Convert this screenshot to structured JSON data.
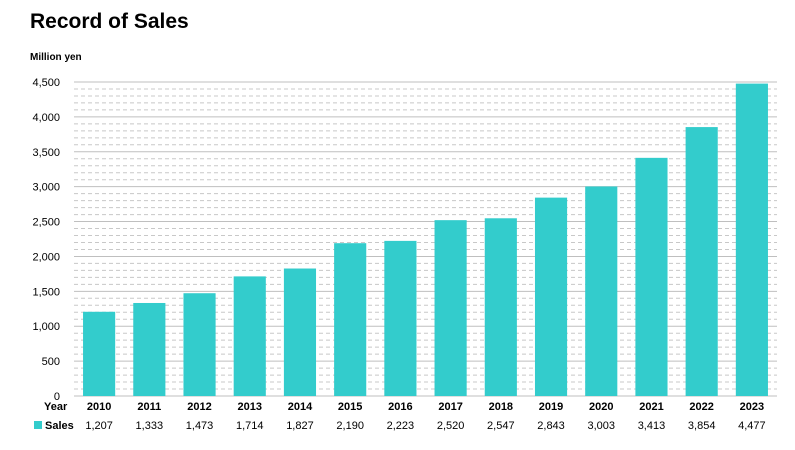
{
  "chart_data": {
    "type": "bar",
    "title": "Record of Sales",
    "ylabel": "Million yen",
    "xlabel": "Year",
    "categories": [
      "2010",
      "2011",
      "2012",
      "2013",
      "2014",
      "2015",
      "2016",
      "2017",
      "2018",
      "2019",
      "2020",
      "2021",
      "2022",
      "2023"
    ],
    "series": [
      {
        "name": "Sales",
        "values": [
          1207,
          1333,
          1473,
          1714,
          1827,
          2190,
          2223,
          2520,
          2547,
          2843,
          3003,
          3413,
          3854,
          4477
        ],
        "color": "#33CCCC"
      }
    ],
    "value_labels": [
      "1,207",
      "1,333",
      "1,473",
      "1,714",
      "1,827",
      "2,190",
      "2,223",
      "2,520",
      "2,547",
      "2,843",
      "3,003",
      "3,413",
      "3,854",
      "4,477"
    ],
    "yticks": [
      "0",
      "500",
      "1,000",
      "1,500",
      "2,000",
      "2,500",
      "3,000",
      "3,500",
      "4,000",
      "4,500"
    ],
    "ylim": [
      0,
      4500
    ],
    "grid": true,
    "legend": "data-table-below"
  }
}
